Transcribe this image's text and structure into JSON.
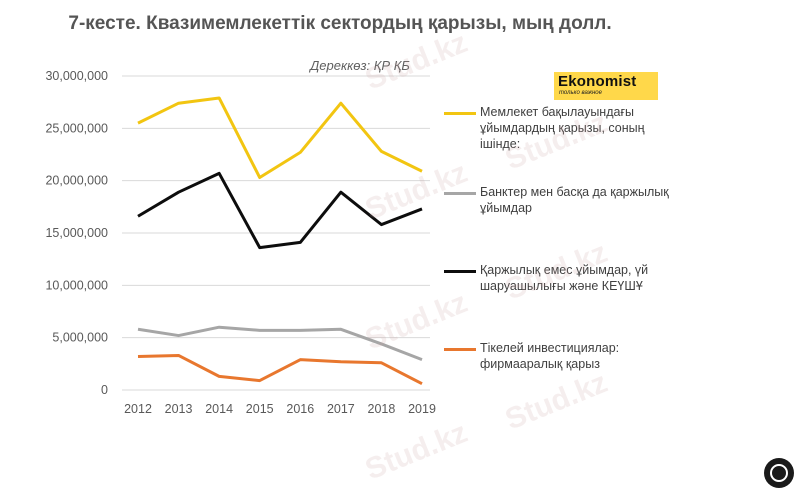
{
  "title": "7-кесте. Квазимемлекеттік сектордың қарызы, мың долл.",
  "source": "Дереккөз: ҚР ҚБ",
  "logo": {
    "word": "Ekonomist",
    "tagline": "только важное"
  },
  "watermark": "Stud.kz",
  "chart_data": {
    "type": "line",
    "title": "7-кесте. Квазимемлекеттік сектордың қарызы, мың долл.",
    "x": [
      "2012",
      "2013",
      "2014",
      "2015",
      "2016",
      "2017",
      "2018",
      "2019"
    ],
    "ylim": [
      0,
      30000000
    ],
    "yticks": [
      0,
      5000000,
      10000000,
      15000000,
      20000000,
      25000000,
      30000000
    ],
    "ytick_labels": [
      "0",
      "5,000,000",
      "10,000,000",
      "15,000,000",
      "20,000,000",
      "25,000,000",
      "30,000,000"
    ],
    "grid": true,
    "legend_position": "right",
    "series": [
      {
        "name": "Мемлекет бақылауындағы ұйымдардың қарызы, соның ішінде:",
        "color": "#f2c511",
        "values": [
          25500000,
          27400000,
          27900000,
          20300000,
          22700000,
          27400000,
          22800000,
          20900000
        ]
      },
      {
        "name": "Банктер мен басқа да қаржылық ұйымдар",
        "color": "#a6a6a6",
        "values": [
          5800000,
          5200000,
          6000000,
          5700000,
          5700000,
          5800000,
          4400000,
          2900000
        ]
      },
      {
        "name": "Қаржылық емес ұйымдар, үй шаруашылығы және КЕҮШҰ",
        "color": "#0d0d0d",
        "values": [
          16600000,
          18900000,
          20700000,
          13600000,
          14100000,
          18900000,
          15800000,
          17300000
        ]
      },
      {
        "name": "Тікелей инвестициялар: фирмааралық қарыз",
        "color": "#e8772e",
        "values": [
          3200000,
          3300000,
          1300000,
          900000,
          2900000,
          2700000,
          2600000,
          600000
        ]
      }
    ]
  }
}
